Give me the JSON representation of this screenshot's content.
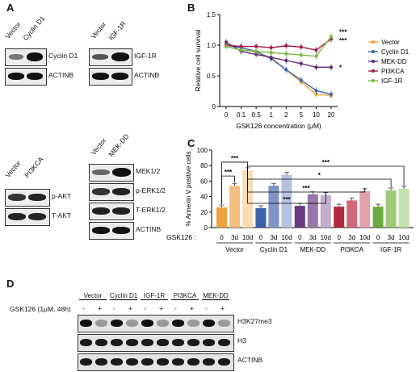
{
  "panels": {
    "A": {
      "label": "A",
      "blot1": {
        "lanes": [
          "Vector",
          "Cyclin D1"
        ],
        "rows": [
          "Cyclin D1",
          "ACTINB"
        ]
      },
      "blot2": {
        "lanes": [
          "Vector",
          "IGF-1R"
        ],
        "rows": [
          "IGF-1R",
          "ACTINB"
        ]
      },
      "blot3": {
        "lanes": [
          "Vector",
          "PI3KCA"
        ],
        "rows": [
          "p-AKT",
          "T-AKT"
        ]
      },
      "blot4": {
        "lanes": [
          "Vector",
          "MEK-DD"
        ],
        "rows": [
          "MEK1/2",
          "p-ERK1/2",
          "T-ERK1/2",
          "ACTINB"
        ]
      }
    },
    "B": {
      "label": "B"
    },
    "C": {
      "label": "C",
      "gsk_label": "GSK126 :"
    },
    "D": {
      "label": "D",
      "treatment": "GSK126 (1μM, 48h)",
      "groups": [
        "Vector",
        "Cyclin D1",
        "IGF-1R",
        "PI3KCA",
        "MEK-DD"
      ],
      "signs": [
        "-",
        "+",
        "-",
        "+",
        "-",
        "+",
        "-",
        "+",
        "-",
        "+"
      ],
      "rows": [
        "H3K27me3",
        "H3",
        "ACTINB"
      ]
    }
  },
  "chart_data": [
    {
      "type": "line",
      "panel": "B",
      "xlabel": "GSK126 concentration (μM)",
      "ylabel": "Relative cell survival",
      "x": [
        "0",
        "0.1",
        "0.5",
        "1",
        "2",
        "5",
        "10",
        "20"
      ],
      "ylim": [
        0,
        1.5
      ],
      "yticks": [
        "0",
        "0.5",
        "1.0",
        "1.5"
      ],
      "series": [
        {
          "name": "Vector",
          "color": "#f0a030",
          "values": [
            1.0,
            0.97,
            0.88,
            0.8,
            0.6,
            0.4,
            0.2,
            0.18
          ]
        },
        {
          "name": "Cyclin D1",
          "color": "#3a62b0",
          "values": [
            1.0,
            0.96,
            0.9,
            0.78,
            0.6,
            0.43,
            0.26,
            0.2
          ]
        },
        {
          "name": "MEK-DD",
          "color": "#5a2a7a",
          "values": [
            1.05,
            0.9,
            0.85,
            0.8,
            0.75,
            0.7,
            0.64,
            0.64
          ]
        },
        {
          "name": "PI3KCA",
          "color": "#a01a4a",
          "values": [
            1.0,
            0.98,
            0.98,
            0.96,
            0.99,
            0.97,
            0.92,
            1.1
          ]
        },
        {
          "name": "IGF-1R",
          "color": "#7ab840",
          "values": [
            0.98,
            0.92,
            0.9,
            0.88,
            0.86,
            0.84,
            0.82,
            1.14
          ]
        }
      ],
      "annotations": [
        "***",
        "***",
        "*"
      ]
    },
    {
      "type": "bar",
      "panel": "C",
      "ylabel": "% Annexin V positive cells",
      "ylim": [
        0,
        100
      ],
      "yticks": [
        "0",
        "20",
        "40",
        "60",
        "80",
        "100"
      ],
      "sub_labels": [
        "0",
        "3d",
        "10d"
      ],
      "groups": [
        {
          "name": "Vector",
          "values": [
            26,
            54,
            74
          ],
          "colors": [
            "#f0a040",
            "#f4c080",
            "#f9dcb4"
          ]
        },
        {
          "name": "Cyclin D1",
          "values": [
            25,
            54,
            68
          ],
          "colors": [
            "#3a62a8",
            "#7f93c6",
            "#b7c2e0"
          ]
        },
        {
          "name": "MEK-DD",
          "values": [
            28,
            43,
            42
          ],
          "colors": [
            "#6a3a84",
            "#9a76aa",
            "#c3aecd"
          ]
        },
        {
          "name": "PI3KCA",
          "values": [
            27,
            35,
            47
          ],
          "colors": [
            "#b0283e",
            "#d0687a",
            "#e2a0ab"
          ]
        },
        {
          "name": "IGF-1R",
          "values": [
            27,
            48,
            50
          ],
          "colors": [
            "#6eaa44",
            "#9dca78",
            "#c4e0ab"
          ]
        }
      ],
      "significance": [
        "***",
        "***",
        "***",
        "***",
        "*",
        "***"
      ]
    }
  ]
}
